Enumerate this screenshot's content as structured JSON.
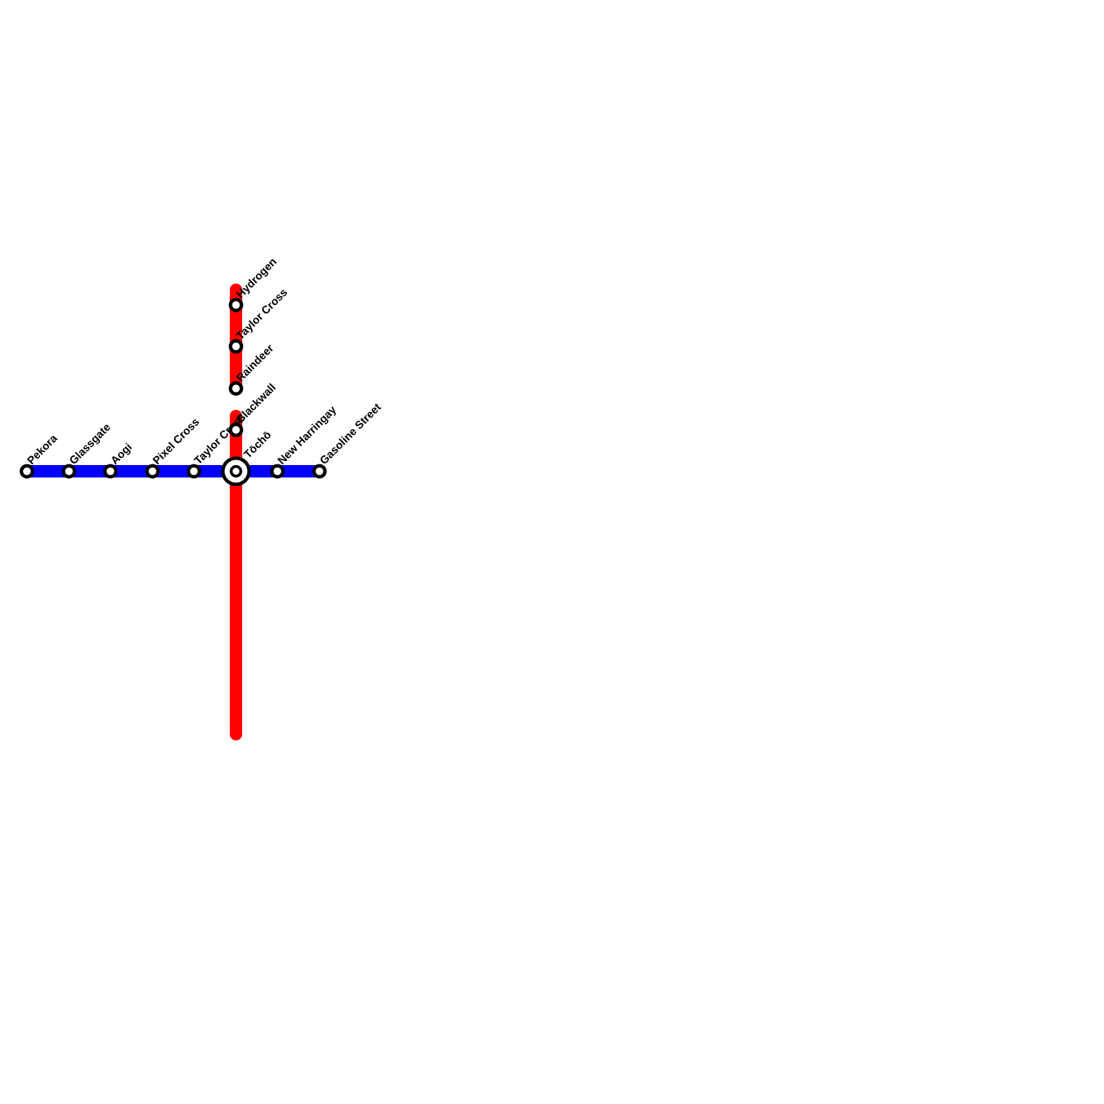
{
  "stations": [
    {
      "label": "Pekora"
    },
    {
      "label": "Glassgate"
    },
    {
      "label": "Aogi"
    },
    {
      "label": "Pixel Cross"
    },
    {
      "label": "Taylor Cross"
    },
    {
      "label": "Tōchō"
    },
    {
      "label": "New Harringay"
    },
    {
      "label": "Gasoline Street"
    },
    {
      "label": "Hydrogen"
    },
    {
      "label": "Taylor Cross"
    },
    {
      "label": "Raindeer"
    },
    {
      "label": "Blackwall"
    }
  ]
}
